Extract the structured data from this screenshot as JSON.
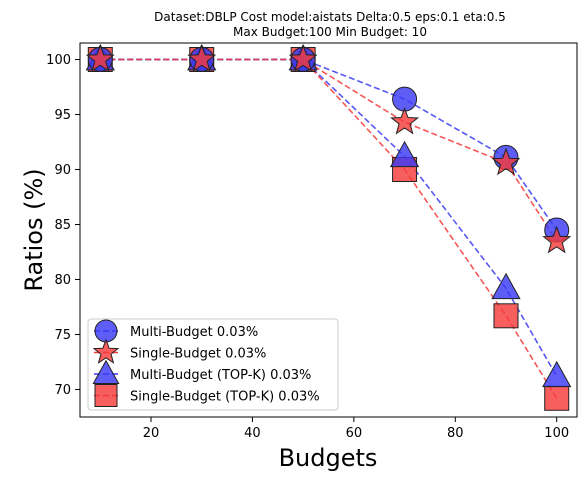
{
  "chart_data": {
    "type": "line",
    "title_lines": [
      "Dataset:DBLP Cost model:aistats Delta:0.5 eps:0.1 eta:0.5",
      "Max Budget:100 Min Budget: 10"
    ],
    "xlabel": "Budgets",
    "ylabel": "Ratios (%)",
    "xlim": [
      6,
      104
    ],
    "ylim": [
      67.5,
      101.5
    ],
    "xticks": [
      20,
      40,
      60,
      80,
      100
    ],
    "yticks": [
      70,
      75,
      80,
      85,
      90,
      95,
      100
    ],
    "grid": false,
    "legend_position": "lower-left",
    "x": [
      10,
      30,
      50,
      70,
      90,
      100
    ],
    "series": [
      {
        "name": "Multi-Budget 0.03%",
        "color": "#0000ee",
        "marker": "circle",
        "values": [
          100,
          100,
          100,
          96.4,
          91.1,
          84.5
        ]
      },
      {
        "name": "Single-Budget 0.03%",
        "color": "#ee0000",
        "marker": "star",
        "values": [
          100,
          100,
          100,
          94.3,
          90.6,
          83.5
        ]
      },
      {
        "name": "Multi-Budget (TOP-K) 0.03%",
        "color": "#0000ee",
        "marker": "triangle",
        "values": [
          100,
          100,
          100,
          91.2,
          79.2,
          71.2
        ]
      },
      {
        "name": "Single-Budget (TOP-K) 0.03%",
        "color": "#ee0000",
        "marker": "square",
        "values": [
          100,
          100,
          100,
          90.0,
          76.7,
          69.2
        ]
      }
    ]
  }
}
